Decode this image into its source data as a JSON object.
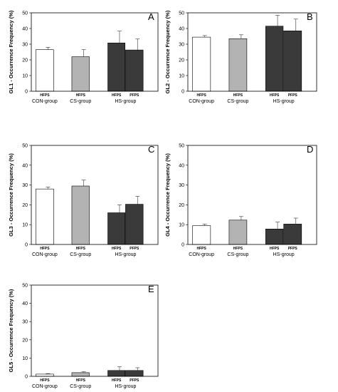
{
  "chart_data": [
    {
      "type": "bar",
      "panel_label": "A",
      "ylabel": "GL1 - Occurrence Frequency (%)",
      "ylim": [
        0,
        50
      ],
      "yticks": [
        0,
        10,
        20,
        30,
        40,
        50
      ],
      "groups": [
        "CON-group",
        "CS-group",
        "HS-group"
      ],
      "categories": [
        "HFPS",
        "HFPS",
        "HFPS",
        "PFPS"
      ],
      "values": [
        26.5,
        22.0,
        30.8,
        26.3
      ],
      "errors": [
        1.5,
        4.5,
        7.5,
        7.0
      ],
      "colors": [
        "#ffffff",
        "#b3b3b3",
        "#3a3a3a",
        "#3a3a3a"
      ]
    },
    {
      "type": "bar",
      "panel_label": "B",
      "ylabel": "GL2 - Occurrence Frequency (%)",
      "ylim": [
        0,
        50
      ],
      "yticks": [
        0,
        10,
        20,
        30,
        40,
        50
      ],
      "groups": [
        "CON-group",
        "CS-group",
        "HS-group"
      ],
      "categories": [
        "HFPS",
        "HFPS",
        "HFPS",
        "PFPS"
      ],
      "values": [
        34.5,
        33.5,
        41.5,
        38.5
      ],
      "errors": [
        1.0,
        2.5,
        7.0,
        7.5
      ],
      "colors": [
        "#ffffff",
        "#b3b3b3",
        "#3a3a3a",
        "#3a3a3a"
      ]
    },
    {
      "type": "bar",
      "panel_label": "C",
      "ylabel": "GL3 - Occurrence Frequency (%)",
      "ylim": [
        0,
        50
      ],
      "yticks": [
        0,
        10,
        20,
        30,
        40,
        50
      ],
      "groups": [
        "CON-group",
        "CS-group",
        "HS-group"
      ],
      "categories": [
        "HFPS",
        "HFPS",
        "HFPS",
        "PFPS"
      ],
      "values": [
        28.0,
        29.5,
        16.0,
        20.3
      ],
      "errors": [
        1.0,
        3.0,
        4.0,
        4.0
      ],
      "colors": [
        "#ffffff",
        "#b3b3b3",
        "#3a3a3a",
        "#3a3a3a"
      ]
    },
    {
      "type": "bar",
      "panel_label": "D",
      "ylabel": "GL4 - Occurrence Frequency (%)",
      "ylim": [
        0,
        50
      ],
      "yticks": [
        0,
        10,
        20,
        30,
        40,
        50
      ],
      "groups": [
        "CON-group",
        "CS-group",
        "HS-group"
      ],
      "categories": [
        "HFPS",
        "HFPS",
        "HFPS",
        "PFPS"
      ],
      "values": [
        9.5,
        12.3,
        7.8,
        10.3
      ],
      "errors": [
        0.8,
        1.8,
        3.5,
        3.0
      ],
      "colors": [
        "#ffffff",
        "#b3b3b3",
        "#3a3a3a",
        "#3a3a3a"
      ]
    },
    {
      "type": "bar",
      "panel_label": "E",
      "ylabel": "GL5 - Occurrence Frequency (%)",
      "ylim": [
        0,
        50
      ],
      "yticks": [
        0,
        10,
        20,
        30,
        40,
        50
      ],
      "groups": [
        "CON-group",
        "CS-group",
        "HS-group"
      ],
      "categories": [
        "HFPS",
        "HFPS",
        "HFPS",
        "PFPS"
      ],
      "values": [
        1.2,
        2.0,
        3.2,
        3.2
      ],
      "errors": [
        0.3,
        0.5,
        2.0,
        1.5
      ],
      "colors": [
        "#ffffff",
        "#b3b3b3",
        "#3a3a3a",
        "#3a3a3a"
      ]
    }
  ]
}
